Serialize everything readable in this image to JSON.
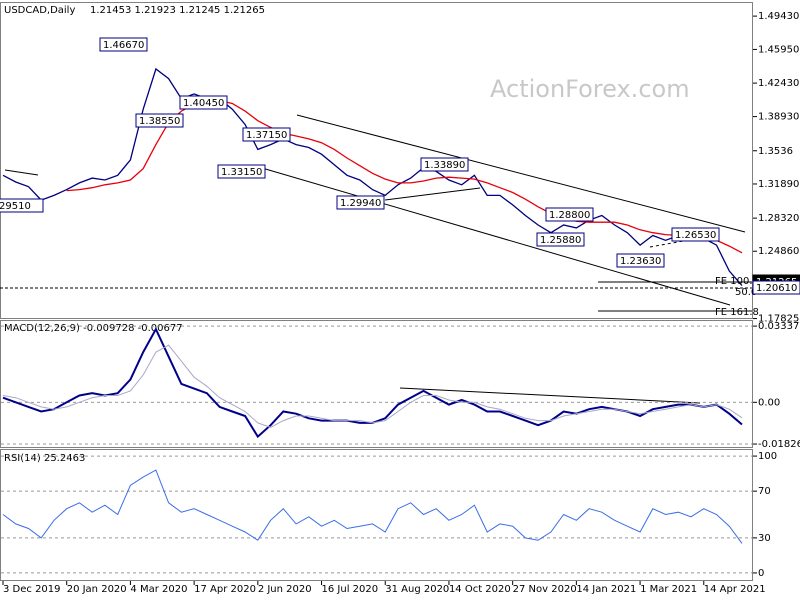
{
  "watermark": "ActionForex.com",
  "chart_data": [
    {
      "type": "line",
      "title": "USDCAD,Daily",
      "subtitle": "1.21453 1.21923 1.21245 1.21265",
      "series": [
        {
          "color": "#000080",
          "values": [
            1.328,
            1.321,
            1.316,
            1.302,
            1.307,
            1.313,
            1.32,
            1.325,
            1.323,
            1.328,
            1.344,
            1.397,
            1.439,
            1.429,
            1.408,
            1.413,
            1.408,
            1.408,
            1.397,
            1.381,
            1.355,
            1.36,
            1.366,
            1.36,
            1.357,
            1.35,
            1.339,
            1.328,
            1.323,
            1.313,
            1.307,
            1.318,
            1.325,
            1.336,
            1.332,
            1.323,
            1.318,
            1.328,
            1.307,
            1.307,
            1.297,
            1.286,
            1.276,
            1.268,
            1.276,
            1.273,
            1.281,
            1.286,
            1.276,
            1.268,
            1.255,
            1.265,
            1.26,
            1.265,
            1.265,
            1.262,
            1.255,
            1.228,
            1.2127
          ]
        },
        {
          "color": "#e8000b",
          "values": [
            null,
            null,
            null,
            null,
            null,
            1.312,
            1.313,
            1.315,
            1.318,
            1.32,
            1.323,
            1.335,
            1.36,
            1.383,
            1.395,
            1.402,
            1.405,
            1.406,
            1.403,
            1.395,
            1.385,
            1.378,
            1.372,
            1.369,
            1.366,
            1.362,
            1.355,
            1.346,
            1.338,
            1.33,
            1.324,
            1.32,
            1.32,
            1.322,
            1.325,
            1.326,
            1.325,
            1.324,
            1.32,
            1.315,
            1.31,
            1.303,
            1.295,
            1.288,
            1.283,
            1.28,
            1.279,
            1.279,
            1.279,
            1.276,
            1.271,
            1.268,
            1.266,
            1.265,
            1.264,
            1.263,
            1.26,
            1.254,
            1.247
          ]
        }
      ],
      "ylim": [
        1.1778,
        1.508
      ],
      "yticks": [
        {
          "value": 1.4943,
          "label": "1.49430"
        },
        {
          "value": 1.4595,
          "label": "1.45950"
        },
        {
          "value": 1.4243,
          "label": "1.42430"
        },
        {
          "value": 1.3893,
          "label": "1.38930"
        },
        1.3536,
        {
          "value": 1.3189,
          "label": "1.31890"
        },
        {
          "value": 1.2832,
          "label": "1.28320"
        },
        {
          "value": 1.2486,
          "label": "1.24860"
        },
        1.17825
      ],
      "grid": false,
      "annotations": [
        "1.46670",
        "1.38550",
        "1.40450",
        "1.37150",
        "1.33150",
        "1.29940",
        "1.33890",
        "1.28800",
        "1.25880",
        "1.23630",
        "1.26530",
        "29510",
        "FE 100.0",
        "50.0",
        "FE 161.8",
        "1.21265",
        "1.20610"
      ]
    },
    {
      "type": "line",
      "title": "MACD(12,26,9) -0.009728 -0.00677",
      "series": [
        {
          "color": "#00008b",
          "width": 2,
          "values": [
            0.002,
            0.0,
            -0.002,
            -0.004,
            -0.003,
            0.0,
            0.003,
            0.004,
            0.003,
            0.004,
            0.01,
            0.022,
            0.032,
            0.02,
            0.008,
            0.006,
            0.004,
            -0.002,
            -0.004,
            -0.006,
            -0.015,
            -0.01,
            -0.004,
            -0.005,
            -0.007,
            -0.008,
            -0.008,
            -0.008,
            -0.009,
            -0.009,
            -0.007,
            -0.001,
            0.002,
            0.005,
            0.002,
            -0.001,
            0.001,
            -0.001,
            -0.004,
            -0.004,
            -0.006,
            -0.008,
            -0.01,
            -0.008,
            -0.004,
            -0.005,
            -0.003,
            -0.002,
            -0.003,
            -0.004,
            -0.006,
            -0.003,
            -0.002,
            -0.001,
            -0.001,
            -0.002,
            -0.001,
            -0.005,
            -0.009728
          ]
        },
        {
          "color": "#a8a8c8",
          "width": 1,
          "values": [
            0.003,
            0.002,
            0.0,
            -0.002,
            -0.003,
            -0.002,
            0.0,
            0.002,
            0.003,
            0.003,
            0.005,
            0.012,
            0.022,
            0.025,
            0.018,
            0.011,
            0.007,
            0.002,
            -0.001,
            -0.004,
            -0.009,
            -0.011,
            -0.008,
            -0.006,
            -0.006,
            -0.007,
            -0.008,
            -0.008,
            -0.008,
            -0.009,
            -0.008,
            -0.004,
            0.0,
            0.003,
            0.003,
            0.001,
            0.0,
            0.0,
            -0.002,
            -0.003,
            -0.005,
            -0.007,
            -0.008,
            -0.008,
            -0.006,
            -0.005,
            -0.004,
            -0.003,
            -0.003,
            -0.004,
            -0.005,
            -0.004,
            -0.003,
            -0.002,
            -0.001,
            -0.002,
            -0.001,
            -0.003,
            -0.00677
          ]
        }
      ],
      "ylim": [
        -0.02,
        0.0356
      ],
      "yticks": [
        0.03337,
        {
          "value": 0,
          "label": "0.00"
        },
        -0.018262
      ],
      "grid": true
    },
    {
      "type": "line",
      "title": "RSI(14) 25.2463",
      "categories": [
        "3 Dec 2019",
        null,
        null,
        null,
        null,
        "20 Jan 2020",
        null,
        null,
        null,
        null,
        "4 Mar 2020",
        null,
        null,
        null,
        null,
        "17 Apr 2020",
        null,
        null,
        null,
        null,
        "2 Jun 2020",
        null,
        null,
        null,
        null,
        "16 Jul 2020",
        null,
        null,
        null,
        null,
        "31 Aug 2020",
        null,
        null,
        null,
        null,
        "14 Oct 2020",
        null,
        null,
        null,
        null,
        "27 Nov 2020",
        null,
        null,
        null,
        null,
        "14 Jan 2021",
        null,
        null,
        null,
        null,
        "1 Mar 2021",
        null,
        null,
        null,
        null,
        "14 Apr 2021",
        null,
        null,
        null
      ],
      "series": [
        {
          "color": "#3a6ee8",
          "width": 1,
          "values": [
            50,
            42,
            38,
            30,
            45,
            55,
            60,
            52,
            58,
            50,
            75,
            82,
            88,
            60,
            52,
            55,
            50,
            45,
            40,
            35,
            28,
            45,
            55,
            42,
            48,
            40,
            45,
            38,
            40,
            42,
            35,
            55,
            60,
            50,
            55,
            45,
            50,
            58,
            35,
            42,
            40,
            30,
            28,
            35,
            50,
            45,
            55,
            52,
            45,
            40,
            35,
            55,
            50,
            52,
            48,
            55,
            50,
            40,
            25.2463
          ]
        }
      ],
      "ylim": [
        -6.9,
        105.2
      ],
      "yticks": [
        100,
        70,
        30,
        0
      ],
      "grid": true
    }
  ]
}
